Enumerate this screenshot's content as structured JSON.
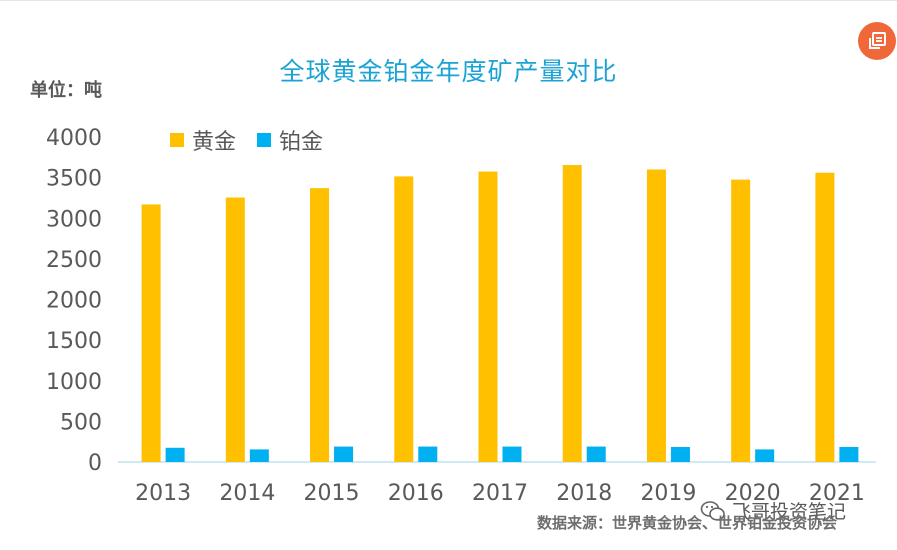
{
  "chart_data": {
    "type": "bar",
    "title": "全球黄金铂金年度矿产量对比",
    "unit_label": "单位：吨",
    "categories": [
      "2013",
      "2014",
      "2015",
      "2016",
      "2017",
      "2018",
      "2019",
      "2020",
      "2021"
    ],
    "series": [
      {
        "name": "黄金",
        "color": "#ffc000",
        "values": [
          3170,
          3255,
          3370,
          3515,
          3575,
          3655,
          3600,
          3475,
          3560
        ]
      },
      {
        "name": "铂金",
        "color": "#00b0f0",
        "values": [
          175,
          155,
          190,
          190,
          190,
          190,
          185,
          155,
          185
        ]
      }
    ],
    "ylim": [
      0,
      4000
    ],
    "yticks": [
      0,
      500,
      1000,
      1500,
      2000,
      2500,
      3000,
      3500,
      4000
    ],
    "grid": false,
    "legend_position": "top-left"
  },
  "source_text": "数据来源：世界黄金协会、世界铂金投资协会",
  "watermark_text": "飞哥投资笔记",
  "icons": {
    "corner_button": "share-icon",
    "watermark": "wechat-icon"
  }
}
